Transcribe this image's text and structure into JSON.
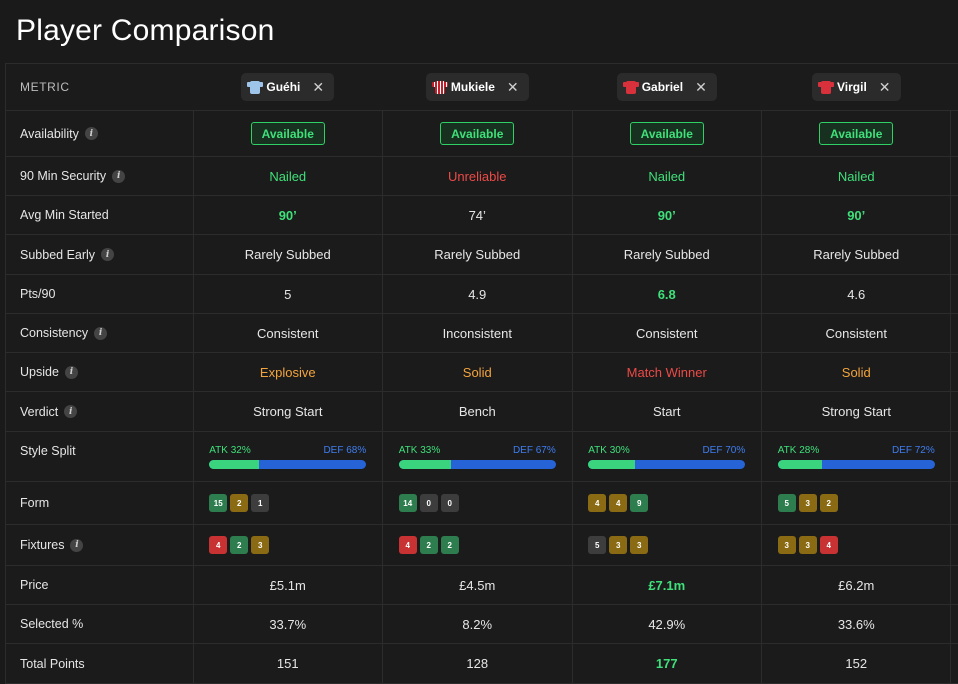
{
  "page_title": "Player Comparison",
  "header": {
    "metric_label": "METRIC",
    "players": [
      {
        "name": "Guéhi",
        "shirt": "blue",
        "close": "✕"
      },
      {
        "name": "Mukiele",
        "shirt": "stripe",
        "close": "✕"
      },
      {
        "name": "Gabriel",
        "shirt": "red",
        "close": "✕"
      },
      {
        "name": "Virgil",
        "shirt": "red",
        "close": "✕"
      }
    ]
  },
  "rows": {
    "availability": {
      "label": "Availability",
      "values": [
        "Available",
        "Available",
        "Available",
        "Available"
      ]
    },
    "security": {
      "label": "90 Min Security",
      "values": [
        "Nailed",
        "Unreliable",
        "Nailed",
        "Nailed"
      ]
    },
    "avg_min": {
      "label": "Avg Min Started",
      "values": [
        "90’",
        "74’",
        "90’",
        "90’"
      ]
    },
    "subbed": {
      "label": "Subbed Early",
      "values": [
        "Rarely Subbed",
        "Rarely Subbed",
        "Rarely Subbed",
        "Rarely Subbed"
      ]
    },
    "pts90": {
      "label": "Pts/90",
      "values": [
        "5",
        "4.9",
        "6.8",
        "4.6"
      ]
    },
    "consistency": {
      "label": "Consistency",
      "values": [
        "Consistent",
        "Inconsistent",
        "Consistent",
        "Consistent"
      ]
    },
    "upside": {
      "label": "Upside",
      "values": [
        "Explosive",
        "Solid",
        "Match Winner",
        "Solid"
      ]
    },
    "verdict": {
      "label": "Verdict",
      "values": [
        "Strong Start",
        "Bench",
        "Start",
        "Strong Start"
      ]
    },
    "style": {
      "label": "Style Split",
      "values": [
        {
          "atk": "ATK 32%",
          "def": "DEF 68%",
          "atk_pct": 32
        },
        {
          "atk": "ATK 33%",
          "def": "DEF 67%",
          "atk_pct": 33
        },
        {
          "atk": "ATK 30%",
          "def": "DEF 70%",
          "atk_pct": 30
        },
        {
          "atk": "ATK 28%",
          "def": "DEF 72%",
          "atk_pct": 28
        }
      ]
    },
    "form": {
      "label": "Form",
      "values": [
        [
          {
            "v": "15",
            "c": "#2e7d4f"
          },
          {
            "v": "2",
            "c": "#8a6a12"
          },
          {
            "v": "1",
            "c": "#3d3d3d"
          }
        ],
        [
          {
            "v": "14",
            "c": "#2e7d4f"
          },
          {
            "v": "0",
            "c": "#3d3d3d"
          },
          {
            "v": "0",
            "c": "#3d3d3d"
          }
        ],
        [
          {
            "v": "4",
            "c": "#8a6a12"
          },
          {
            "v": "4",
            "c": "#8a6a12"
          },
          {
            "v": "9",
            "c": "#2e7d4f"
          }
        ],
        [
          {
            "v": "5",
            "c": "#2e7d4f"
          },
          {
            "v": "3",
            "c": "#8a6a12"
          },
          {
            "v": "2",
            "c": "#8a6a12"
          }
        ]
      ]
    },
    "fixtures": {
      "label": "Fixtures",
      "values": [
        [
          {
            "v": "4",
            "c": "#c93232"
          },
          {
            "v": "2",
            "c": "#2e7d4f"
          },
          {
            "v": "3",
            "c": "#8a6a12"
          }
        ],
        [
          {
            "v": "4",
            "c": "#c93232"
          },
          {
            "v": "2",
            "c": "#2e7d4f"
          },
          {
            "v": "2",
            "c": "#2e7d4f"
          }
        ],
        [
          {
            "v": "5",
            "c": "#3d3d3d"
          },
          {
            "v": "3",
            "c": "#8a6a12"
          },
          {
            "v": "3",
            "c": "#8a6a12"
          }
        ],
        [
          {
            "v": "3",
            "c": "#8a6a12"
          },
          {
            "v": "3",
            "c": "#8a6a12"
          },
          {
            "v": "4",
            "c": "#c93232"
          }
        ]
      ]
    },
    "price": {
      "label": "Price",
      "values": [
        "£5.1m",
        "£4.5m",
        "£7.1m",
        "£6.2m"
      ]
    },
    "selected": {
      "label": "Selected %",
      "values": [
        "33.7%",
        "8.2%",
        "42.9%",
        "33.6%"
      ]
    },
    "total": {
      "label": "Total Points",
      "values": [
        "151",
        "128",
        "177",
        "152"
      ]
    }
  },
  "info_glyph": "i",
  "colors": {
    "green": "#3fe07a",
    "red": "#ec4a47",
    "orange": "#f3a43b",
    "def_blue": "#2563d6",
    "atk_green": "#3ad47e"
  }
}
